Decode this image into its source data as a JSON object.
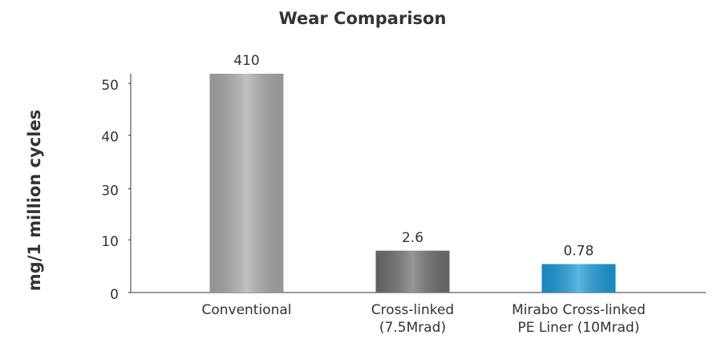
{
  "chart_data": {
    "type": "bar",
    "title": "Wear Comparison",
    "y_label": "mg/1 million cycles",
    "categories": [
      [
        "Conventional"
      ],
      [
        "Cross-linked",
        "(7.5Mrad)"
      ],
      [
        "Mirabo Cross-linked",
        "PE Liner (10Mrad)"
      ]
    ],
    "values": [
      52.3,
      10.0,
      6.8
    ],
    "annotations": [
      "410",
      "2.6",
      "0.78"
    ],
    "colors": [
      "#a9a9a9",
      "#6f6f6f",
      "#1c9ad8"
    ],
    "ylim": [
      0,
      50
    ],
    "yticks": [
      0,
      {
        "value": 12.6,
        "label": "10"
      },
      {
        "value": 24.8,
        "label": "30"
      },
      {
        "value": 37.6,
        "label": "40"
      },
      50
    ]
  }
}
